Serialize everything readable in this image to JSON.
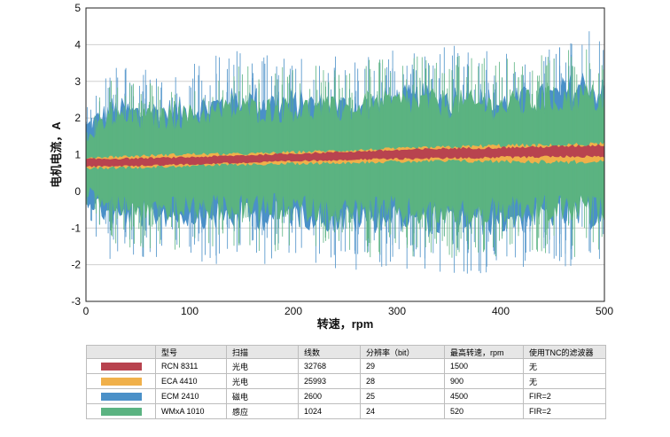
{
  "chart_data": {
    "type": "area",
    "title": "",
    "xlabel": "转速，rpm",
    "ylabel": "电机电流，A",
    "xlim": [
      0,
      500
    ],
    "ylim": [
      -3,
      5
    ],
    "xticks": [
      "0",
      "100",
      "200",
      "300",
      "400",
      "500"
    ],
    "yticks": [
      "-3",
      "-2",
      "-1",
      "0",
      "1",
      "2",
      "3",
      "4",
      "5"
    ],
    "grid": "horizontal",
    "legend": "table-below",
    "series": [
      {
        "name": "ECM 2410",
        "color": "#4a90c8",
        "x": [
          0,
          25,
          50,
          100,
          150,
          200,
          250,
          300,
          350,
          400,
          450,
          480,
          500
        ],
        "upper": [
          2.0,
          2.6,
          2.5,
          2.6,
          2.9,
          2.8,
          2.7,
          2.9,
          3.0,
          2.8,
          3.0,
          3.4,
          3.1
        ],
        "lower": [
          -0.4,
          -1.1,
          -1.0,
          -1.0,
          -1.1,
          -1.0,
          -1.2,
          -1.1,
          -1.3,
          -1.2,
          -1.0,
          -1.1,
          -1.0
        ]
      },
      {
        "name": "WMxA 1010",
        "color": "#5bb381",
        "x": [
          0,
          25,
          50,
          100,
          150,
          200,
          250,
          300,
          350,
          400,
          450,
          480,
          500
        ],
        "upper": [
          1.6,
          2.3,
          2.3,
          2.4,
          2.6,
          2.6,
          2.6,
          2.8,
          2.8,
          2.7,
          2.9,
          3.0,
          2.9
        ],
        "lower": [
          -0.2,
          -0.7,
          -0.8,
          -0.8,
          -0.8,
          -0.8,
          -0.9,
          -0.9,
          -1.0,
          -0.9,
          -0.9,
          -0.9,
          -0.9
        ]
      },
      {
        "name": "ECA 4410",
        "color": "#f0b04a",
        "x": [
          0,
          50,
          100,
          150,
          200,
          250,
          300,
          350,
          400,
          450,
          500
        ],
        "upper": [
          0.95,
          1.0,
          1.05,
          1.05,
          1.1,
          1.15,
          1.2,
          1.25,
          1.3,
          1.3,
          1.35
        ],
        "lower": [
          0.6,
          0.62,
          0.66,
          0.7,
          0.72,
          0.75,
          0.77,
          0.78,
          0.77,
          0.75,
          0.75
        ]
      },
      {
        "name": "RCN 8311",
        "color": "#b8434f",
        "x": [
          0,
          50,
          100,
          150,
          200,
          250,
          300,
          350,
          400,
          450,
          500
        ],
        "upper": [
          0.9,
          0.92,
          0.95,
          1.0,
          1.05,
          1.1,
          1.15,
          1.2,
          1.22,
          1.25,
          1.3
        ],
        "lower": [
          0.65,
          0.68,
          0.72,
          0.76,
          0.8,
          0.84,
          0.86,
          0.88,
          0.9,
          0.92,
          0.92
        ]
      }
    ]
  },
  "table": {
    "headers": [
      "",
      "型号",
      "扫描",
      "线数",
      "分辨率（bit）",
      "最高转速，rpm",
      "使用TNC的滤波器"
    ],
    "rows": [
      {
        "color": "#b8434f",
        "model": "RCN 8311",
        "scan": "光电",
        "lines": "32768",
        "resolution": "29",
        "max_speed": "1500",
        "filter": "无"
      },
      {
        "color": "#f0b04a",
        "model": "ECA 4410",
        "scan": "光电",
        "lines": "25993",
        "resolution": "28",
        "max_speed": "900",
        "filter": "无"
      },
      {
        "color": "#4a90c8",
        "model": "ECM 2410",
        "scan": "磁电",
        "lines": "2600",
        "resolution": "25",
        "max_speed": "4500",
        "filter": "FIR=2"
      },
      {
        "color": "#5bb381",
        "model": "WMxA 1010",
        "scan": "感应",
        "lines": "1024",
        "resolution": "24",
        "max_speed": "520",
        "filter": "FIR=2"
      }
    ]
  }
}
